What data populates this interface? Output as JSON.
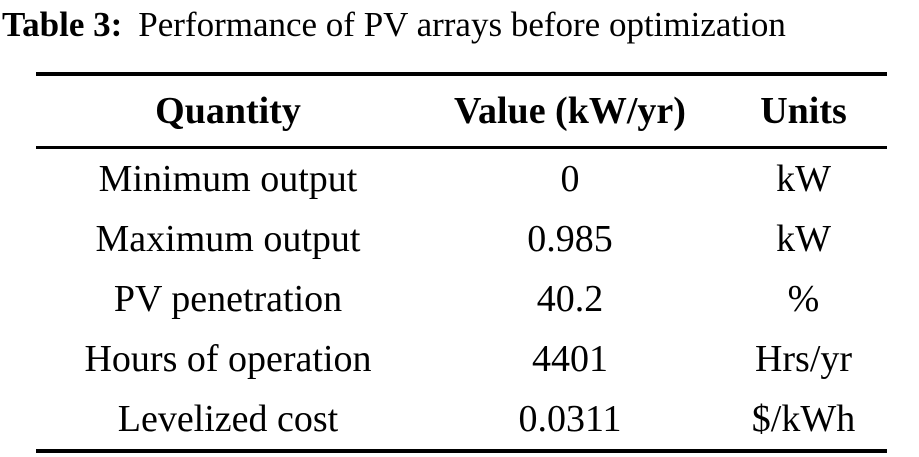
{
  "page": {
    "background_color": "#ffffff",
    "text_color": "#000000"
  },
  "caption": {
    "label": "Table 3:",
    "text": "Performance of PV arrays before optimization"
  },
  "table": {
    "columns": [
      "Quantity",
      "Value (kW/yr)",
      "Units"
    ],
    "rows": [
      {
        "quantity": "Minimum output",
        "value": "0",
        "units": "kW"
      },
      {
        "quantity": "Maximum output",
        "value": "0.985",
        "units": "kW"
      },
      {
        "quantity": "PV penetration",
        "value": "40.2",
        "units": "%"
      },
      {
        "quantity": "Hours of operation",
        "value": "4401",
        "units": "Hrs/yr"
      },
      {
        "quantity": "Levelized cost",
        "value": "0.0311",
        "units": "$/kWh"
      }
    ]
  }
}
